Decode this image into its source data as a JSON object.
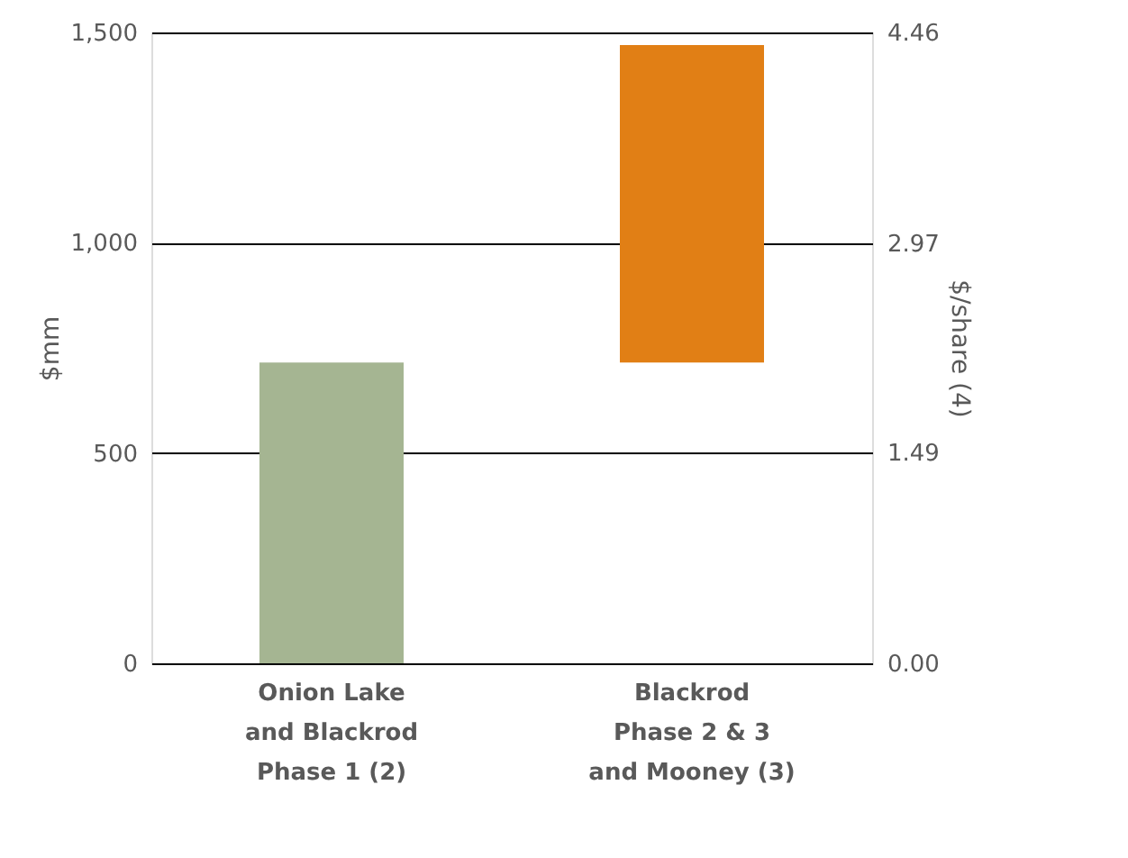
{
  "chart_data": {
    "type": "bar",
    "categories": [
      "Onion Lake\nand Blackrod\nPhase 1 (2)",
      "Blackrod\nPhase 2 & 3\nand Mooney (3)"
    ],
    "values": [
      715,
      755
    ],
    "base": [
      0,
      715
    ],
    "colors": [
      "#a5b592",
      "#e17f15"
    ],
    "ylabel": "$mm",
    "y2label": "$/share (4)",
    "ylim": [
      0,
      1500
    ],
    "yticks": [
      0,
      {
        "value": 500,
        "label": "500"
      },
      {
        "value": 1000,
        "label": "1,000"
      },
      {
        "value": 1500,
        "label": "1,500"
      }
    ],
    "y2lim": [
      0,
      4.46
    ],
    "y2ticks": [
      {
        "value": 0,
        "label": "0.00"
      },
      1.49,
      2.97,
      4.46
    ],
    "grid": "y"
  }
}
